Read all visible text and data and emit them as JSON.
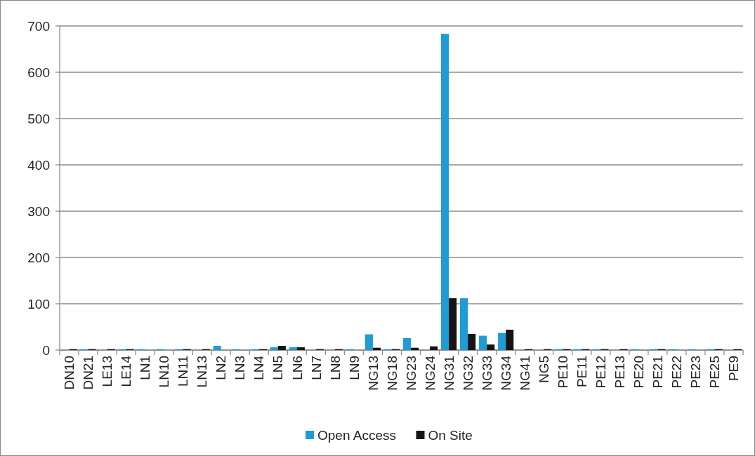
{
  "chart_data": {
    "type": "bar",
    "categories": [
      "DN10",
      "DN21",
      "LE13",
      "LE14",
      "LN1",
      "LN10",
      "LN11",
      "LN13",
      "LN2",
      "LN3",
      "LN4",
      "LN5",
      "LN6",
      "LN7",
      "LN8",
      "LN9",
      "NG13",
      "NG18",
      "NG23",
      "NG24",
      "NG31",
      "NG32",
      "NG33",
      "NG34",
      "NG41",
      "NG5",
      "PE10",
      "PE11",
      "PE12",
      "PE13",
      "PE20",
      "PE21",
      "PE22",
      "PE23",
      "PE25",
      "PE9"
    ],
    "series": [
      {
        "name": "Open Access",
        "color": "#1e9cd7",
        "values": [
          0,
          2,
          0,
          2,
          2,
          2,
          2,
          0,
          9,
          2,
          2,
          6,
          6,
          0,
          0,
          2,
          34,
          2,
          26,
          0,
          683,
          112,
          31,
          37,
          0,
          0,
          2,
          2,
          2,
          0,
          2,
          2,
          2,
          2,
          2,
          0
        ]
      },
      {
        "name": "On Site",
        "color": "#141414",
        "values": [
          2,
          2,
          2,
          2,
          0,
          0,
          2,
          2,
          0,
          0,
          2,
          9,
          6,
          2,
          2,
          0,
          5,
          2,
          5,
          8,
          112,
          35,
          12,
          44,
          2,
          2,
          2,
          2,
          2,
          2,
          0,
          2,
          0,
          0,
          2,
          2
        ]
      }
    ],
    "ylim": [
      0,
      700
    ],
    "yticks": [
      0,
      100,
      200,
      300,
      400,
      500,
      600,
      700
    ],
    "grid": "y",
    "legend": "bottom"
  }
}
